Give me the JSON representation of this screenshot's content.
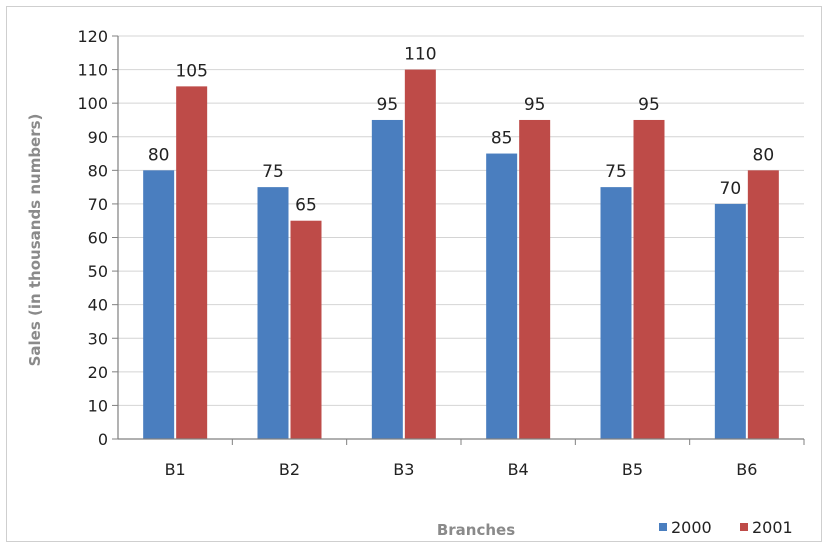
{
  "chart_data": {
    "type": "bar",
    "categories": [
      "B1",
      "B2",
      "B3",
      "B4",
      "B5",
      "B6"
    ],
    "series": [
      {
        "name": "2000",
        "values": [
          80,
          75,
          95,
          85,
          75,
          70
        ],
        "color": "#4a7ebf"
      },
      {
        "name": "2001",
        "values": [
          105,
          65,
          110,
          95,
          95,
          80
        ],
        "color": "#be4b48"
      }
    ],
    "title": "",
    "xlabel": "Branches",
    "ylabel": "Sales (in thousands numbers)",
    "ylim": [
      0,
      120
    ],
    "yticks": [
      0,
      10,
      20,
      30,
      40,
      50,
      60,
      70,
      80,
      90,
      100,
      110,
      120
    ],
    "grid": true,
    "legend_position": "bottom-right"
  }
}
